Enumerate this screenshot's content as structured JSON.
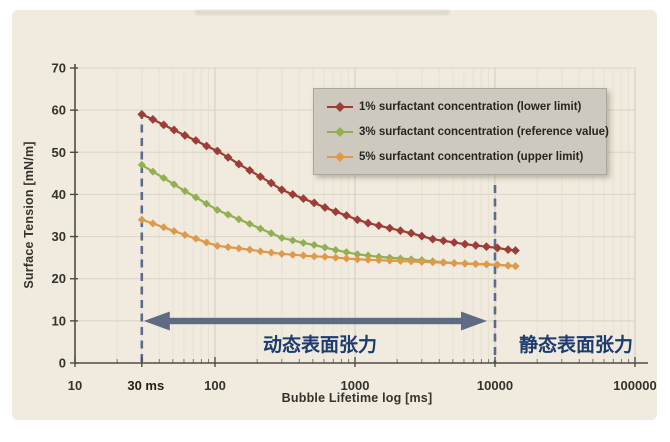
{
  "colors": {
    "page_bg": "#ffffff",
    "panel_bg": "#f0ebde",
    "grid_major": "#cfcbbd",
    "grid_minor": "#e7e2d4",
    "grid_horizontal": "#d8d4c6",
    "axis": "#4d4c45",
    "tick_text": "#33322c",
    "dashed_line": "#5c6b8a",
    "arrow": "#5f6a83",
    "cn_text": "#1c3b6e",
    "legend_bg": "#cdc9bf"
  },
  "chart_data": {
    "type": "line",
    "x_scale": "log",
    "title": "",
    "xlabel": "Bubble Lifetime log [ms]",
    "ylabel": "Surface Tension [mN/m]",
    "xlim": [
      10,
      100000
    ],
    "ylim": [
      0,
      70
    ],
    "x_ticks": [
      10,
      100,
      1000,
      10000,
      100000
    ],
    "y_ticks": [
      0,
      10,
      20,
      30,
      40,
      50,
      60,
      70
    ],
    "x_extra_tick": {
      "value": 30,
      "label": "30 ms"
    },
    "grid": true,
    "legend_position": "top-right",
    "x": [
      30,
      36,
      43,
      51,
      61,
      73,
      87,
      104,
      124,
      148,
      177,
      211,
      252,
      300,
      359,
      428,
      511,
      610,
      728,
      869,
      1040,
      1240,
      1480,
      1770,
      2110,
      2520,
      3000,
      3590,
      4280,
      5110,
      6100,
      7280,
      8690,
      10400,
      12400,
      14000
    ],
    "series": [
      {
        "name": "1% surfactant concentration (lower limit)",
        "color": "#9e3c36",
        "values": [
          59,
          57.8,
          56.5,
          55.3,
          54,
          52.8,
          51.5,
          50.3,
          48.8,
          47.2,
          45.7,
          44.2,
          42.7,
          41.1,
          40,
          39,
          38,
          36.9,
          35.9,
          35,
          34,
          33.2,
          32.6,
          32,
          31.4,
          30.8,
          30.1,
          29.4,
          29,
          28.6,
          28.2,
          27.9,
          27.6,
          27.3,
          26.9,
          26.7
        ]
      },
      {
        "name": "3% surfactant concentration (reference value)",
        "color": "#92b052",
        "values": [
          47,
          45.4,
          43.9,
          42.4,
          40.8,
          39.3,
          37.8,
          36.3,
          35.2,
          34.1,
          33,
          31.9,
          30.8,
          29.7,
          29.1,
          28.5,
          28,
          27.4,
          26.8,
          26.3,
          25.8,
          25.5,
          25.2,
          25,
          24.8,
          24.6,
          24.4,
          24.1,
          23.9,
          23.7,
          23.6,
          23.5,
          23.4,
          23.3,
          23.1,
          23
        ]
      },
      {
        "name": "5% surfactant concentration (upper limit)",
        "color": "#e0994b",
        "values": [
          34,
          33.1,
          32.2,
          31.3,
          30.4,
          29.5,
          28.6,
          27.8,
          27.5,
          27.2,
          26.9,
          26.5,
          26.2,
          25.9,
          25.7,
          25.5,
          25.3,
          25.2,
          25,
          24.8,
          24.6,
          24.5,
          24.4,
          24.3,
          24.2,
          24.1,
          24,
          23.9,
          23.8,
          23.7,
          23.6,
          23.5,
          23.4,
          23.3,
          23.1,
          23
        ]
      }
    ],
    "annotations": {
      "dynamic_range": {
        "from_ms": 30,
        "to_ms": 10000,
        "label": "动态表面张力"
      },
      "static_label": {
        "at_ms": 10000,
        "label": "静态表面张力"
      }
    }
  }
}
